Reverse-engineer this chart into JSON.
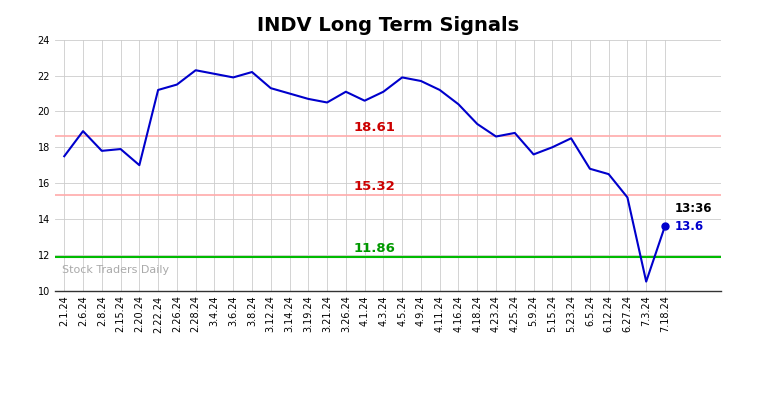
{
  "title": "INDV Long Term Signals",
  "x_labels": [
    "2.1.24",
    "2.6.24",
    "2.8.24",
    "2.15.24",
    "2.20.24",
    "2.22.24",
    "2.26.24",
    "2.28.24",
    "3.4.24",
    "3.6.24",
    "3.8.24",
    "3.12.24",
    "3.14.24",
    "3.19.24",
    "3.21.24",
    "3.26.24",
    "4.1.24",
    "4.3.24",
    "4.5.24",
    "4.9.24",
    "4.11.24",
    "4.16.24",
    "4.18.24",
    "4.23.24",
    "4.25.24",
    "5.9.24",
    "5.15.24",
    "5.23.24",
    "6.5.24",
    "6.12.24",
    "6.27.24",
    "7.3.24",
    "7.18.24"
  ],
  "y_values": [
    17.5,
    18.9,
    17.8,
    17.9,
    17.0,
    21.2,
    21.5,
    22.3,
    22.1,
    21.9,
    22.2,
    21.3,
    21.0,
    20.7,
    20.5,
    21.1,
    20.6,
    21.1,
    21.9,
    21.7,
    21.2,
    20.4,
    19.3,
    18.6,
    18.8,
    17.6,
    18.0,
    18.5,
    16.8,
    16.5,
    15.2,
    10.5,
    13.6
  ],
  "line_color": "#0000cc",
  "line_width": 1.5,
  "marker_last_color": "#0000cc",
  "hline_upper": 18.61,
  "hline_upper_color": "#ffaaaa",
  "hline_mid": 15.32,
  "hline_mid_color": "#ffaaaa",
  "hline_lower": 11.86,
  "hline_lower_color": "#00bb00",
  "hline_upper_label": "18.61",
  "hline_mid_label": "15.32",
  "hline_lower_label": "11.86",
  "hline_label_color_upper": "#cc0000",
  "hline_label_color_lower": "#009900",
  "last_label_time": "13:36",
  "last_label_value": "13.6",
  "watermark": "Stock Traders Daily",
  "ylim": [
    10,
    24
  ],
  "yticks": [
    10,
    12,
    14,
    16,
    18,
    20,
    22,
    24
  ],
  "bg_color": "#ffffff",
  "grid_color": "#cccccc",
  "title_fontsize": 14,
  "tick_fontsize": 7,
  "label_fontsize": 9.5
}
